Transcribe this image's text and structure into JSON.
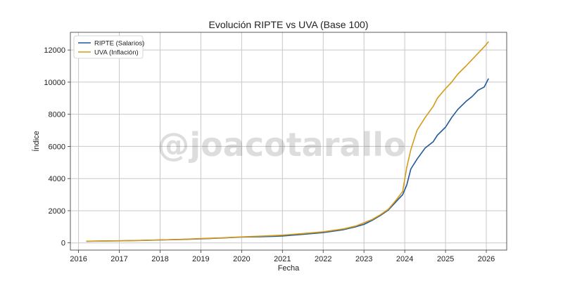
{
  "watermark": "@joacotarallo",
  "chart_data": {
    "type": "line",
    "title": "Evolución RIPTE vs UVA (Base 100)",
    "xlabel": "Fecha",
    "ylabel": "Índice",
    "xlim": [
      2015.8,
      2026.5
    ],
    "ylim": [
      -450,
      13100
    ],
    "x_ticks": [
      2016,
      2017,
      2018,
      2019,
      2020,
      2021,
      2022,
      2023,
      2024,
      2025,
      2026
    ],
    "x_tick_labels": [
      "2016",
      "2017",
      "2018",
      "2019",
      "2020",
      "2021",
      "2022",
      "2023",
      "2024",
      "2025",
      "2026"
    ],
    "y_ticks": [
      0,
      2000,
      4000,
      6000,
      8000,
      10000,
      12000
    ],
    "y_tick_labels": [
      "0",
      "2000",
      "4000",
      "6000",
      "8000",
      "10000",
      "12000"
    ],
    "grid": true,
    "legend_position": "top-left",
    "series": [
      {
        "name": "RIPTE (Salarios)",
        "color": "#1f5799",
        "x": [
          2016.2,
          2016.5,
          2017.0,
          2017.5,
          2018.0,
          2018.5,
          2019.0,
          2019.5,
          2020.0,
          2020.5,
          2021.0,
          2021.5,
          2022.0,
          2022.5,
          2022.8,
          2023.0,
          2023.2,
          2023.4,
          2023.6,
          2023.8,
          2023.95,
          2024.05,
          2024.15,
          2024.3,
          2024.5,
          2024.7,
          2024.8,
          2025.0,
          2025.15,
          2025.3,
          2025.5,
          2025.65,
          2025.8,
          2025.95,
          2026.05
        ],
        "y": [
          100,
          110,
          125,
          150,
          180,
          210,
          255,
          300,
          360,
          380,
          430,
          530,
          640,
          820,
          1000,
          1150,
          1400,
          1700,
          2050,
          2600,
          3000,
          3600,
          4600,
          5200,
          5900,
          6300,
          6700,
          7200,
          7800,
          8300,
          8800,
          9100,
          9500,
          9700,
          10200
        ]
      },
      {
        "name": "UVA (Inflación)",
        "color": "#d59b1a",
        "x": [
          2016.2,
          2016.5,
          2017.0,
          2017.5,
          2018.0,
          2018.5,
          2019.0,
          2019.5,
          2020.0,
          2020.5,
          2021.0,
          2021.5,
          2022.0,
          2022.5,
          2022.8,
          2023.0,
          2023.2,
          2023.4,
          2023.6,
          2023.8,
          2023.95,
          2024.05,
          2024.15,
          2024.3,
          2024.5,
          2024.7,
          2024.8,
          2025.0,
          2025.15,
          2025.3,
          2025.5,
          2025.65,
          2025.8,
          2025.95,
          2026.05
        ],
        "y": [
          100,
          112,
          130,
          155,
          185,
          220,
          265,
          310,
          370,
          420,
          480,
          580,
          690,
          870,
          1050,
          1250,
          1450,
          1750,
          2100,
          2700,
          3200,
          4700,
          5800,
          7000,
          7800,
          8500,
          9000,
          9600,
          10000,
          10500,
          11000,
          11400,
          11800,
          12200,
          12500
        ]
      }
    ]
  }
}
